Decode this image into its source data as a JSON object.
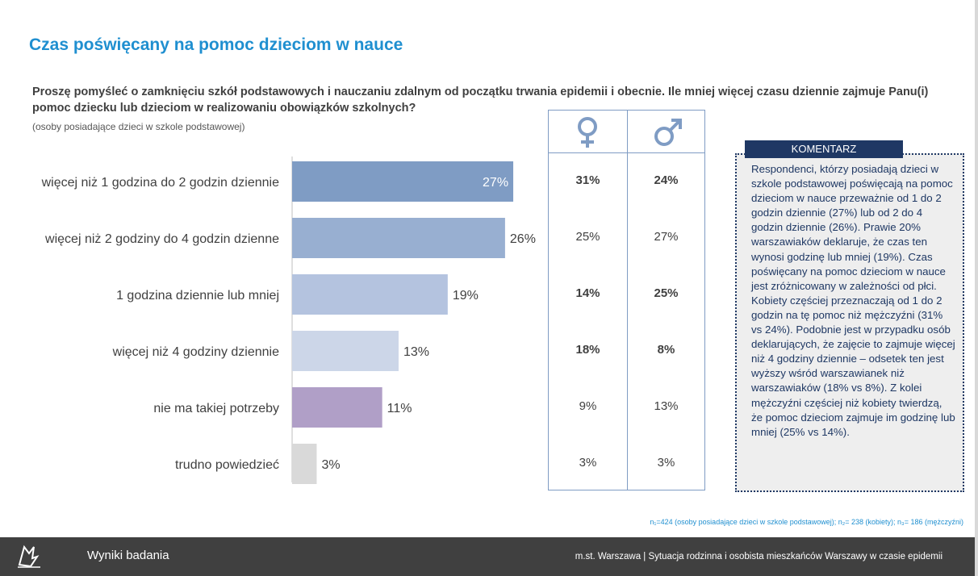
{
  "page": {
    "title": "Czas poświęcany na pomoc dzieciom w nauce",
    "question": "Proszę pomyśleć o zamknięciu szkół podstawowych i nauczaniu zdalnym od początku trwania epidemii i obecnie. Ile mniej więcej czasu dziennie zajmuje Panu(i) pomoc dziecku lub dzieciom w realizowaniu obowiązków szkolnych?",
    "subnote": "(osoby posiadające dzieci w szkole podstawowej)"
  },
  "chart_data": {
    "type": "bar",
    "orientation": "horizontal",
    "categories": [
      "więcej niż 1 godzina do 2 godzin dziennie",
      "więcej niż 2 godziny do 4 godzin dzienne",
      "1 godzina dziennie lub mniej",
      "więcej niż 4 godziny dziennie",
      "nie ma takiej potrzeby",
      "trudno powiedzieć"
    ],
    "values": [
      27,
      26,
      19,
      13,
      11,
      3
    ],
    "value_labels": [
      "27%",
      "26%",
      "19%",
      "13%",
      "11%",
      "3%"
    ],
    "colors": [
      "#7f9cc4",
      "#98afd1",
      "#b4c3df",
      "#ccd6e8",
      "#b09fc7",
      "#d9d9d9"
    ],
    "xlim": [
      0,
      30
    ]
  },
  "gender_table": {
    "headers": [
      "female-symbol",
      "male-symbol"
    ],
    "rows": [
      {
        "female": "31%",
        "male": "24%",
        "bold": true
      },
      {
        "female": "25%",
        "male": "27%",
        "bold": false
      },
      {
        "female": "14%",
        "male": "25%",
        "bold": true
      },
      {
        "female": "18%",
        "male": "8%",
        "bold": true
      },
      {
        "female": "9%",
        "male": "13%",
        "bold": false
      },
      {
        "female": "3%",
        "male": "3%",
        "bold": false
      }
    ]
  },
  "commentary": {
    "heading": "KOMENTARZ",
    "text": "Respondenci, którzy posiadają dzieci w szkole podstawowej poświęcają na pomoc dzieciom w nauce przeważnie od 1 do 2 godzin dziennie (27%) lub od 2 do 4 godzin dziennie (26%). Prawie 20% warszawiaków deklaruje, że czas ten wynosi godzinę lub mniej (19%). Czas poświęcany na pomoc dzieciom w nauce jest zróżnicowany w zależności od płci. Kobiety częściej przeznaczają od 1 do 2 godzin na tę pomoc niż mężczyźni (31% vs 24%). Podobnie jest w przypadku osób deklarujących, że zajęcie to zajmuje więcej niż 4 godziny dziennie – odsetek ten jest wyższy wśród warszawianek niż warszawiaków (18% vs 8%). Z kolei mężczyźni częściej niż kobiety twierdzą, że pomoc dzieciom zajmuje im godzinę lub mniej (25% vs 14%)."
  },
  "footnote": "n₁=424 (osoby posiadające dzieci w szkole podstawowej); n₂= 238 (kobiety); n₃= 186 (mężczyźni)",
  "footer": {
    "left": "Wyniki badania",
    "right": "m.st. Warszawa | Sytuacja rodzinna i osobista mieszkańców Warszawy w czasie epidemii"
  },
  "colors": {
    "title": "#1f8fd0",
    "table_border": "#7f9cc4",
    "commentary_head": "#1f3864",
    "footer_bg": "#404040"
  }
}
